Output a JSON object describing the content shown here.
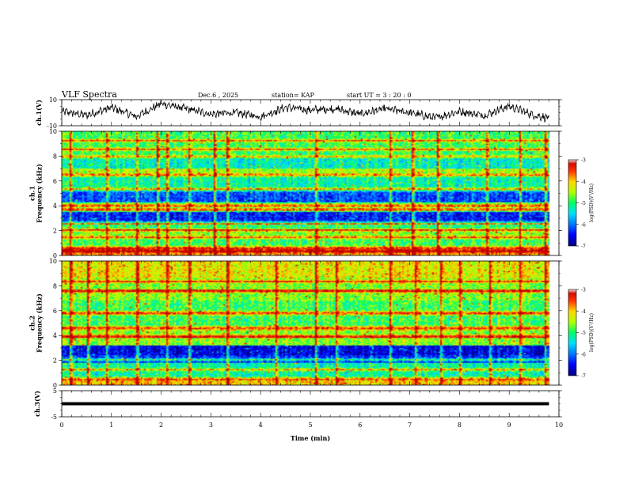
{
  "header": {
    "title": "VLF Spectra",
    "date": "Dec.6 , 2025",
    "station": "station= KAP",
    "start_ut": "start UT = 3 : 20 : 0"
  },
  "colors": {
    "background": "#ffffff",
    "axis": "#000000",
    "waveform": "#000000",
    "colormap": [
      "#000080",
      "#0000ff",
      "#0078ff",
      "#00e0ff",
      "#00ff64",
      "#b4ff00",
      "#ffd700",
      "#ff3000",
      "#c00000",
      "#ffffff"
    ]
  },
  "chart_data": [
    {
      "type": "line",
      "id": "ch1-waveform",
      "ylabel": "ch.1(V)",
      "ylim": [
        -10,
        10
      ],
      "yticks": [
        "10",
        "-10"
      ],
      "xlim": [
        0,
        10
      ],
      "x": [
        0,
        0.5,
        1,
        1.5,
        2,
        2.5,
        3,
        3.5,
        4,
        4.5,
        5,
        5.5,
        6,
        6.5,
        7,
        7.5,
        8,
        8.5,
        9,
        9.5,
        9.8
      ],
      "values": [
        1,
        -2,
        4,
        -3,
        7,
        3,
        -1,
        0,
        -3,
        4,
        2,
        3,
        -1,
        3,
        0,
        -4,
        1,
        -2,
        5,
        -2,
        -4
      ]
    },
    {
      "type": "heatmap",
      "id": "ch1-spectrogram",
      "ylabel": "ch.1\nFrequency (kHz)",
      "ylim": [
        0,
        10
      ],
      "yticks": [
        "0",
        "2",
        "4",
        "6",
        "8",
        "10"
      ],
      "xlim": [
        0,
        10
      ],
      "data_end_min": 9.8,
      "colorbar": {
        "label": "log(PSD)(V²/Hz)",
        "range": [
          -7,
          -3
        ],
        "ticks": [
          "-3",
          "-4",
          "-5",
          "-6",
          "-7"
        ]
      },
      "bands": [
        {
          "f0": 0,
          "f1": 0.6,
          "level": -3.8
        },
        {
          "f0": 0.6,
          "f1": 1.5,
          "level": -4.9
        },
        {
          "f0": 1.5,
          "f1": 2.1,
          "level": -4.6
        },
        {
          "f0": 2.1,
          "f1": 2.6,
          "level": -5.0
        },
        {
          "f0": 2.6,
          "f1": 3.5,
          "level": -6.4
        },
        {
          "f0": 3.5,
          "f1": 4.3,
          "level": -5.0
        },
        {
          "f0": 4.3,
          "f1": 5.3,
          "level": -6.2
        },
        {
          "f0": 5.3,
          "f1": 6.6,
          "level": -5.2
        },
        {
          "f0": 6.6,
          "f1": 7.0,
          "level": -4.5
        },
        {
          "f0": 7.0,
          "f1": 8.0,
          "level": -5.3
        },
        {
          "f0": 8.0,
          "f1": 10,
          "level": -4.9
        }
      ],
      "lines_khz": [
        0.3,
        0.6,
        1.4,
        2.0,
        2.6,
        3.7,
        4.0,
        5.3,
        6.5,
        8.0,
        8.6,
        9.3
      ],
      "bursts_min": [
        0.15,
        0.9,
        1.5,
        1.9,
        2.1,
        2.55,
        3.05,
        3.3,
        5.08,
        6.6,
        7.05,
        7.55,
        8.55,
        9.2,
        9.7
      ]
    },
    {
      "type": "heatmap",
      "id": "ch2-spectrogram",
      "ylabel": "ch.2\nFrequency (kHz)",
      "ylim": [
        0,
        10
      ],
      "yticks": [
        "0",
        "2",
        "4",
        "6",
        "8",
        "10"
      ],
      "xlim": [
        0,
        10
      ],
      "data_end_min": 9.8,
      "colorbar": {
        "label": "log(PSD)(V²/Hz)",
        "range": [
          -7,
          -3
        ],
        "ticks": [
          "-3",
          "-4",
          "-5",
          "-6",
          "-7"
        ]
      },
      "bands": [
        {
          "f0": 0,
          "f1": 0.5,
          "level": -4.0
        },
        {
          "f0": 0.5,
          "f1": 1.8,
          "level": -5.2
        },
        {
          "f0": 1.8,
          "f1": 2.4,
          "level": -6.3
        },
        {
          "f0": 2.4,
          "f1": 3.2,
          "level": -6.6
        },
        {
          "f0": 3.2,
          "f1": 4.5,
          "level": -4.6
        },
        {
          "f0": 4.5,
          "f1": 6.8,
          "level": -4.9
        },
        {
          "f0": 6.8,
          "f1": 8.6,
          "level": -4.6
        },
        {
          "f0": 8.6,
          "f1": 10,
          "level": -4.2
        }
      ],
      "lines_khz": [
        0.5,
        1.2,
        2.0,
        3.9,
        4.6,
        5.8,
        7.6,
        8.4
      ],
      "bursts_min": [
        0.15,
        0.5,
        0.9,
        1.5,
        2.1,
        2.55,
        3.3,
        4.3,
        5.1,
        5.5,
        6.6,
        7.1,
        7.6,
        8.0,
        8.6,
        9.2,
        9.7
      ]
    },
    {
      "type": "line",
      "id": "ch3-trace",
      "ylabel": "ch.3(V)",
      "ylim": [
        -5,
        5
      ],
      "yticks": [
        "5",
        "-5"
      ],
      "xlim": [
        0,
        10
      ],
      "xlabel": "Time (min)",
      "xticks": [
        "0",
        "1",
        "2",
        "3",
        "4",
        "5",
        "6",
        "7",
        "8",
        "9",
        "10"
      ],
      "x": [
        0,
        9.8
      ],
      "values": [
        0,
        0
      ],
      "band_halfwidth_v": 0.6
    }
  ]
}
